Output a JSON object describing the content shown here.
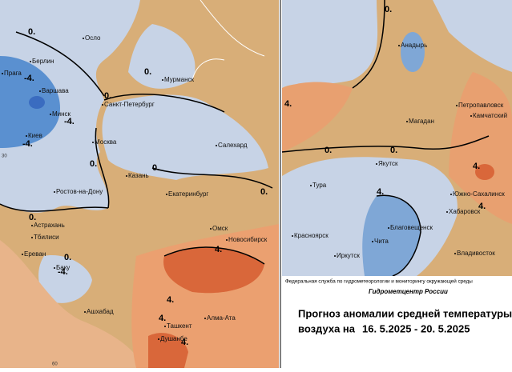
{
  "left_map": {
    "cities": [
      "Осло",
      "Берлин",
      "Прага",
      "Варшава",
      "Минск",
      "Киев",
      "Санкт-Петербург",
      "Мурманск",
      "Москва",
      "Салехард",
      "Казань",
      "Екатеринбург",
      "Ростов-на-Дону",
      "Астрахань",
      "Тбилиси",
      "Ереван",
      "Баку",
      "Омск",
      "Новосибирск",
      "Ашхабад",
      "Ташкент",
      "Алма-Ата",
      "Душанбе"
    ],
    "contour_labels": [
      "0.",
      "0.",
      "0.",
      "0.",
      "0.",
      "0.",
      "0.",
      "0.",
      "-4.",
      "-4.",
      "-4.",
      "-4.",
      "4.",
      "4.",
      "4.",
      "4."
    ],
    "graticule_labels": [
      "30",
      "60"
    ]
  },
  "right_map": {
    "cities": [
      "Анадырь",
      "Петропавловск",
      "Камчатский",
      "Магадан",
      "Якутск",
      "Тура",
      "Южно-Сахалинск",
      "Хабаровск",
      "Благовещенск",
      "Красноярск",
      "Иркутск",
      "Чита",
      "Владивосток"
    ],
    "contour_labels": [
      "0.",
      "0.",
      "0.",
      "4.",
      "4.",
      "4.",
      "4."
    ]
  },
  "caption": {
    "agency": "Федеральная служба по гидрометеорологии и мониторингу окружающей среды",
    "center": "Гидрометцентр России",
    "title": "Прогноз аномалии средней температуры",
    "prefix": "воздуха на",
    "dates": "16. 5.2025 - 20. 5.2025"
  }
}
